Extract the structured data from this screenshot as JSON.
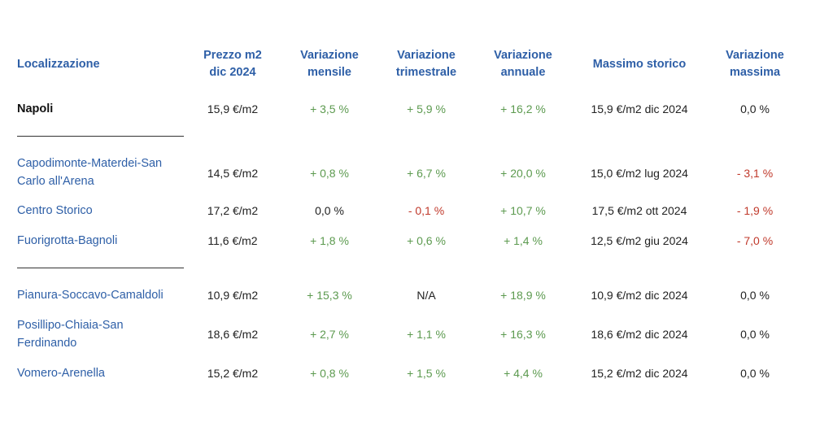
{
  "headers": {
    "location": "Localizzazione",
    "price": [
      "Prezzo m2",
      "dic 2024"
    ],
    "monthly": [
      "Variazione",
      "mensile"
    ],
    "quarterly": [
      "Variazione",
      "trimestrale"
    ],
    "annual": [
      "Variazione",
      "annuale"
    ],
    "max_hist": "Massimo storico",
    "max_var": [
      "Variazione",
      "massima"
    ]
  },
  "city": {
    "location": "Napoli",
    "price": "15,9 €/m2",
    "monthly": "+ 3,5 %",
    "quarterly": "+ 5,9 %",
    "annual": "+ 16,2 %",
    "max_hist": "15,9 €/m2 dic 2024",
    "max_var": "0,0 %"
  },
  "rows": [
    {
      "location": [
        "Capodimonte-Materdei-San",
        "Carlo all'Arena"
      ],
      "price": "14,5 €/m2",
      "monthly": "+ 0,8 %",
      "quarterly": "+ 6,7 %",
      "annual": "+ 20,0 %",
      "max_hist": "15,0 €/m2 lug 2024",
      "max_var": "- 3,1 %"
    },
    {
      "location": [
        "Centro Storico"
      ],
      "price": "17,2 €/m2",
      "monthly": "0,0 %",
      "quarterly": "- 0,1 %",
      "annual": "+ 10,7 %",
      "max_hist": "17,5 €/m2 ott 2024",
      "max_var": "- 1,9 %"
    },
    {
      "location": [
        "Fuorigrotta-Bagnoli"
      ],
      "price": "11,6 €/m2",
      "monthly": "+ 1,8 %",
      "quarterly": "+ 0,6 %",
      "annual": "+ 1,4 %",
      "max_hist": "12,5 €/m2 giu 2024",
      "max_var": "- 7,0 %"
    },
    {
      "location": [
        "Pianura-Soccavo-Camaldoli"
      ],
      "price": "10,9 €/m2",
      "monthly": "+ 15,3 %",
      "quarterly": "N/A",
      "annual": "+ 18,9 %",
      "max_hist": "10,9 €/m2 dic 2024",
      "max_var": "0,0 %"
    },
    {
      "location": [
        "Posillipo-Chiaia-San",
        "Ferdinando"
      ],
      "price": "18,6 €/m2",
      "monthly": "+ 2,7 %",
      "quarterly": "+ 1,1 %",
      "annual": "+ 16,3 %",
      "max_hist": "18,6 €/m2 dic 2024",
      "max_var": "0,0 %"
    },
    {
      "location": [
        "Vomero-Arenella"
      ],
      "price": "15,2 €/m2",
      "monthly": "+ 0,8 %",
      "quarterly": "+ 1,5 %",
      "annual": "+ 4,4 %",
      "max_hist": "15,2 €/m2 dic 2024",
      "max_var": "0,0 %"
    }
  ],
  "colors": {
    "header": "#2e5fa7",
    "positive": "#5c9a4f",
    "negative": "#c0392b",
    "neutral": "#222222"
  }
}
